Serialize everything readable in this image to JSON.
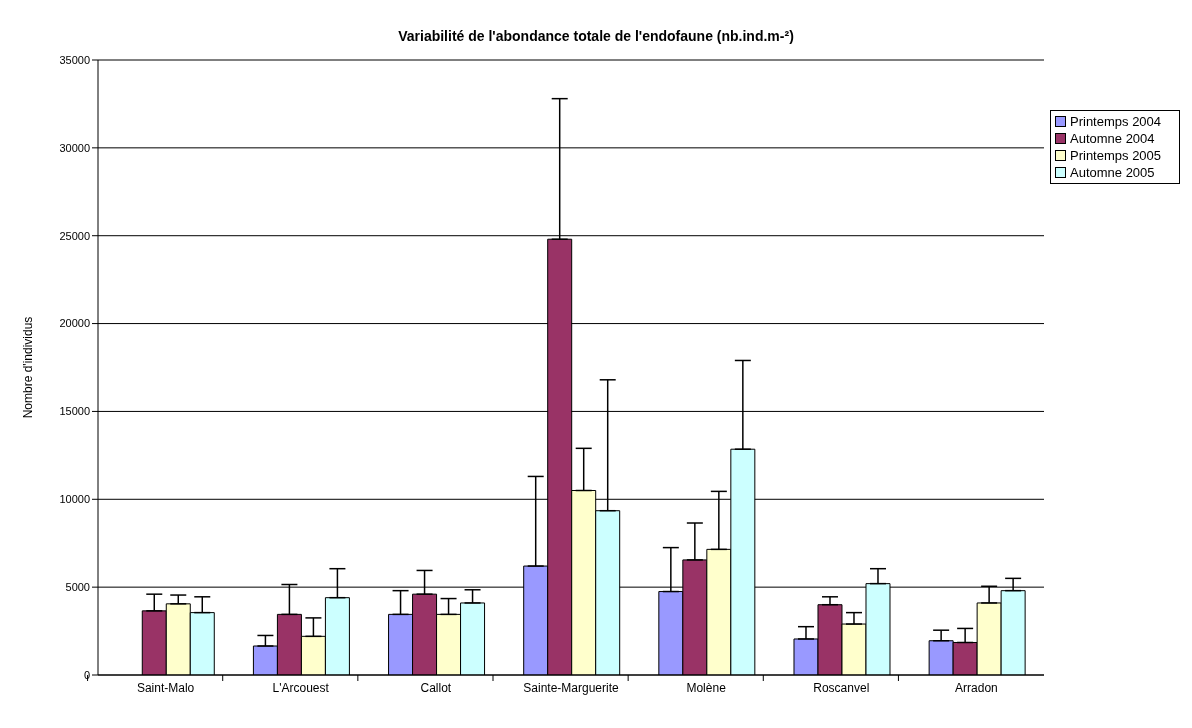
{
  "chart_data": {
    "type": "bar",
    "title": "Variabilité de l'abondance totale de l'endofaune (nb.ind.m-²)",
    "ylabel": "Nombre d'individus",
    "categories": [
      "Saint-Malo",
      "L'Arcouest",
      "Callot",
      "Sainte-Marguerite",
      "Molène",
      "Roscanvel",
      "Arradon"
    ],
    "series": [
      {
        "name": "Printemps 2004",
        "color": "#9999ff",
        "values": [
          null,
          1650,
          3450,
          6200,
          4750,
          2050,
          1950
        ],
        "errors": [
          null,
          [
            1650,
            2250
          ],
          [
            3450,
            4800
          ],
          [
            6200,
            11300
          ],
          [
            4750,
            7250
          ],
          [
            2050,
            2750
          ],
          [
            1950,
            2550
          ]
        ]
      },
      {
        "name": "Automne 2004",
        "color": "#993366",
        "values": [
          3650,
          3450,
          4600,
          24800,
          6550,
          4000,
          1850
        ],
        "errors": [
          [
            3650,
            4600
          ],
          [
            3450,
            5150
          ],
          [
            4600,
            5950
          ],
          [
            24800,
            32800
          ],
          [
            6550,
            8650
          ],
          [
            4000,
            4450
          ],
          [
            1850,
            2650
          ]
        ]
      },
      {
        "name": "Printemps 2005",
        "color": "#ffffcc",
        "values": [
          4050,
          2200,
          3450,
          10500,
          7150,
          2900,
          4100
        ],
        "errors": [
          [
            4050,
            4550
          ],
          [
            2200,
            3250
          ],
          [
            3450,
            4350
          ],
          [
            10500,
            12900
          ],
          [
            7150,
            10450
          ],
          [
            2900,
            3550
          ],
          [
            4100,
            5050
          ]
        ]
      },
      {
        "name": "Automne 2005",
        "color": "#ccffff",
        "values": [
          3550,
          4400,
          4100,
          9350,
          12850,
          5200,
          4800
        ],
        "errors": [
          [
            3550,
            4450
          ],
          [
            4400,
            6050
          ],
          [
            4100,
            4850
          ],
          [
            9350,
            16800
          ],
          [
            12850,
            17900
          ],
          [
            5200,
            6050
          ],
          [
            4800,
            5500
          ]
        ]
      }
    ],
    "ylim": [
      0,
      35000
    ],
    "yticks": [
      0,
      5000,
      10000,
      15000,
      20000,
      25000,
      30000,
      35000
    ],
    "grid": "y",
    "legend": "top right"
  }
}
